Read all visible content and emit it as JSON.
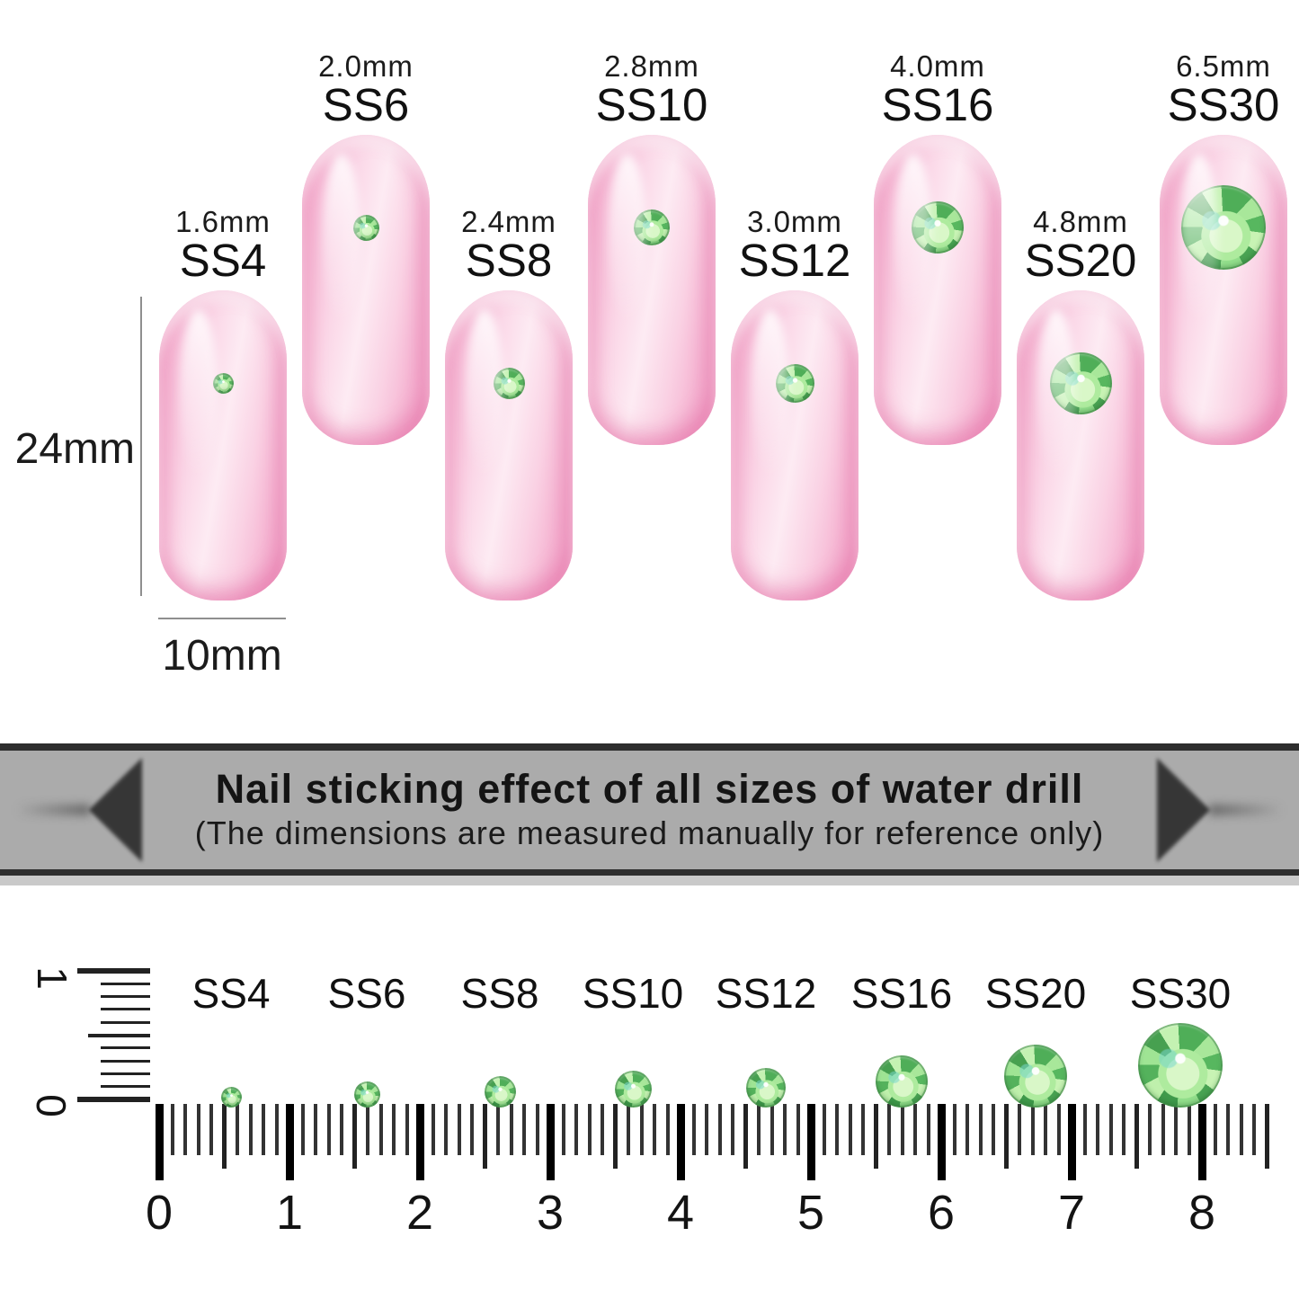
{
  "sizes": [
    {
      "ss": "SS4",
      "mm_label": "1.6mm",
      "mm": 1.6
    },
    {
      "ss": "SS6",
      "mm_label": "2.0mm",
      "mm": 2.0
    },
    {
      "ss": "SS8",
      "mm_label": "2.4mm",
      "mm": 2.4
    },
    {
      "ss": "SS10",
      "mm_label": "2.8mm",
      "mm": 2.8
    },
    {
      "ss": "SS12",
      "mm_label": "3.0mm",
      "mm": 3.0
    },
    {
      "ss": "SS16",
      "mm_label": "4.0mm",
      "mm": 4.0
    },
    {
      "ss": "SS20",
      "mm_label": "4.8mm",
      "mm": 4.8
    },
    {
      "ss": "SS30",
      "mm_label": "6.5mm",
      "mm": 6.5
    }
  ],
  "nail_dimensions": {
    "height_label": "24mm",
    "width_label": "10mm"
  },
  "banner": {
    "title": "Nail sticking effect of all sizes of water drill",
    "subtitle": "(The dimensions are measured manually for reference only)"
  },
  "ruler": {
    "numbers": [
      "0",
      "1",
      "2",
      "3",
      "4",
      "5",
      "6",
      "7",
      "8"
    ],
    "vertical_numbers": [
      "1",
      "0"
    ]
  },
  "colors": {
    "nail_pink": "#f6aecd",
    "gem_green": "#6fcb70",
    "banner_bg": "#ababab",
    "banner_border": "#2e2e2e",
    "ink": "#161616",
    "background": "#ffffff"
  }
}
